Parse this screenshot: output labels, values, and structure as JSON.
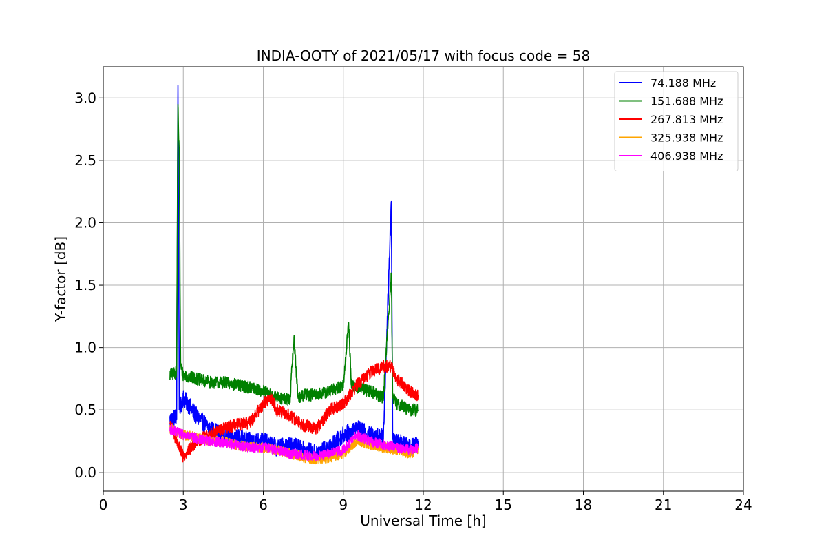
{
  "chart_data": {
    "type": "line",
    "title": "INDIA-OOTY of 2021/05/17 with focus code = 58",
    "xlabel": "Universal Time [h]",
    "ylabel": "Y-factor [dB]",
    "xlim": [
      0,
      24
    ],
    "ylim": [
      -0.15,
      3.25
    ],
    "xticks": [
      0,
      3,
      6,
      9,
      12,
      15,
      18,
      21,
      24
    ],
    "xtick_labels": [
      "0",
      "3",
      "6",
      "9",
      "12",
      "15",
      "18",
      "21",
      "24"
    ],
    "yticks": [
      0.0,
      0.5,
      1.0,
      1.5,
      2.0,
      2.5,
      3.0
    ],
    "ytick_labels": [
      "0.0",
      "0.5",
      "1.0",
      "1.5",
      "2.0",
      "2.5",
      "3.0"
    ],
    "grid": true,
    "legend_position": "top-right",
    "series": [
      {
        "name": " 74.188 MHz",
        "color": "#0000ff",
        "x": [
          2.5,
          2.75,
          2.8,
          2.85,
          3.0,
          3.5,
          4.0,
          4.5,
          5.0,
          5.5,
          6.0,
          6.5,
          7.0,
          7.5,
          8.0,
          8.5,
          9.0,
          9.5,
          10.0,
          10.5,
          10.8,
          10.85,
          11.0,
          11.5,
          11.8
        ],
        "y": [
          0.42,
          0.45,
          3.1,
          0.5,
          0.6,
          0.45,
          0.35,
          0.3,
          0.28,
          0.25,
          0.25,
          0.2,
          0.22,
          0.18,
          0.15,
          0.2,
          0.3,
          0.35,
          0.3,
          0.28,
          2.17,
          0.3,
          0.25,
          0.2,
          0.25
        ]
      },
      {
        "name": "151.688 MHz",
        "color": "#008000",
        "x": [
          2.5,
          2.75,
          2.8,
          2.85,
          2.9,
          3.0,
          3.5,
          4.0,
          4.5,
          5.0,
          5.5,
          6.0,
          6.5,
          7.0,
          7.15,
          7.3,
          7.5,
          8.0,
          8.5,
          9.0,
          9.2,
          9.3,
          9.5,
          10.0,
          10.5,
          10.7,
          10.8,
          10.85,
          11.0,
          11.5,
          11.8
        ],
        "y": [
          0.78,
          0.8,
          2.95,
          2.5,
          0.85,
          0.78,
          0.75,
          0.72,
          0.72,
          0.7,
          0.68,
          0.65,
          0.6,
          0.58,
          1.08,
          0.6,
          0.62,
          0.62,
          0.65,
          0.7,
          1.2,
          0.7,
          0.68,
          0.65,
          0.6,
          1.27,
          1.6,
          0.6,
          0.55,
          0.5,
          0.5
        ]
      },
      {
        "name": "267.813 MHz",
        "color": "#ff0000",
        "x": [
          2.5,
          2.75,
          3.0,
          3.5,
          4.0,
          4.5,
          5.0,
          5.5,
          6.0,
          6.3,
          6.5,
          7.0,
          7.5,
          8.0,
          8.5,
          9.0,
          9.5,
          10.0,
          10.5,
          10.8,
          11.0,
          11.5,
          11.8
        ],
        "y": [
          0.4,
          0.25,
          0.12,
          0.25,
          0.3,
          0.35,
          0.38,
          0.4,
          0.55,
          0.6,
          0.5,
          0.45,
          0.38,
          0.35,
          0.5,
          0.55,
          0.7,
          0.8,
          0.85,
          0.85,
          0.75,
          0.65,
          0.62
        ]
      },
      {
        "name": "325.938 MHz",
        "color": "#ffa500",
        "x": [
          2.5,
          3.0,
          3.5,
          4.0,
          4.5,
          5.0,
          5.5,
          6.0,
          6.5,
          7.0,
          7.5,
          8.0,
          8.5,
          9.0,
          9.5,
          10.0,
          10.5,
          11.0,
          11.5,
          11.8
        ],
        "y": [
          0.35,
          0.3,
          0.28,
          0.25,
          0.25,
          0.22,
          0.2,
          0.2,
          0.18,
          0.15,
          0.12,
          0.1,
          0.12,
          0.15,
          0.25,
          0.22,
          0.2,
          0.18,
          0.15,
          0.18
        ]
      },
      {
        "name": "406.938 MHz",
        "color": "#ff00ff",
        "x": [
          2.5,
          3.0,
          3.5,
          4.0,
          4.5,
          5.0,
          5.5,
          6.0,
          6.5,
          7.0,
          7.5,
          8.0,
          8.5,
          9.0,
          9.5,
          10.0,
          10.5,
          11.0,
          11.5,
          11.8
        ],
        "y": [
          0.35,
          0.3,
          0.27,
          0.25,
          0.24,
          0.22,
          0.2,
          0.2,
          0.18,
          0.15,
          0.14,
          0.13,
          0.15,
          0.18,
          0.3,
          0.25,
          0.22,
          0.2,
          0.18,
          0.2
        ]
      }
    ]
  }
}
